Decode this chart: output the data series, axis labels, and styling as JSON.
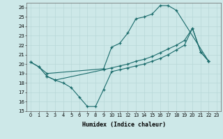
{
  "xlabel": "Humidex (Indice chaleur)",
  "xlim": [
    -0.5,
    23.5
  ],
  "ylim": [
    15,
    26.5
  ],
  "yticks": [
    15,
    16,
    17,
    18,
    19,
    20,
    21,
    22,
    23,
    24,
    25,
    26
  ],
  "xticks": [
    0,
    1,
    2,
    3,
    4,
    5,
    6,
    7,
    8,
    9,
    10,
    11,
    12,
    13,
    14,
    15,
    16,
    17,
    18,
    19,
    20,
    21,
    22,
    23
  ],
  "bg_color": "#cde8e8",
  "line_color": "#1a6b6b",
  "grid_color": "#b8d8d8",
  "line1_x": [
    0,
    1,
    2,
    9,
    10,
    11,
    12,
    13,
    14,
    15,
    16,
    17,
    18,
    22
  ],
  "line1_y": [
    20.2,
    19.7,
    19.0,
    19.5,
    21.8,
    22.2,
    23.3,
    24.8,
    25.0,
    25.3,
    26.2,
    26.2,
    25.7,
    20.3
  ],
  "line2_x": [
    0,
    1,
    2,
    3,
    4,
    5,
    6,
    7,
    8,
    9,
    10,
    11,
    12,
    13,
    14,
    15,
    16,
    17,
    18,
    19,
    20,
    21,
    22
  ],
  "line2_y": [
    20.2,
    19.7,
    18.7,
    18.3,
    18.0,
    17.5,
    16.5,
    15.5,
    15.5,
    17.3,
    19.2,
    19.4,
    19.6,
    19.8,
    20.0,
    20.3,
    20.6,
    21.0,
    21.5,
    22.0,
    23.8,
    21.3,
    20.3
  ],
  "line3_x": [
    2,
    3,
    9,
    10,
    11,
    12,
    13,
    14,
    15,
    16,
    17,
    18,
    19,
    20,
    21,
    22
  ],
  "line3_y": [
    18.7,
    18.3,
    19.4,
    19.6,
    19.8,
    20.0,
    20.3,
    20.5,
    20.8,
    21.2,
    21.6,
    22.0,
    22.5,
    23.8,
    21.3,
    20.3
  ]
}
